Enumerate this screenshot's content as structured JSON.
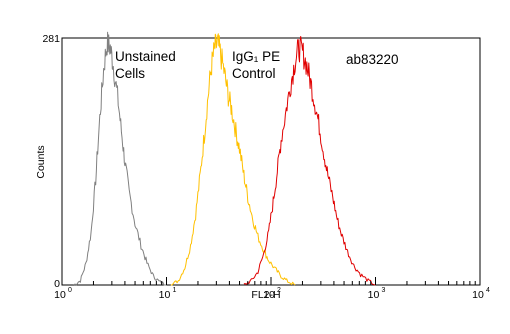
{
  "chart_data": {
    "type": "line",
    "title": "",
    "xlabel": "FL2-H",
    "ylabel": "Counts",
    "x_scale": "log",
    "xlim": [
      1,
      10000
    ],
    "ylim": [
      0,
      281
    ],
    "grid": false,
    "x_ticks": [
      {
        "base": "10",
        "exp": "0"
      },
      {
        "base": "10",
        "exp": "1"
      },
      {
        "base": "10",
        "exp": "2"
      },
      {
        "base": "10",
        "exp": "3"
      },
      {
        "base": "10",
        "exp": "4"
      }
    ],
    "y_ticks": [
      "0",
      "281"
    ],
    "annotations": [
      {
        "lines": [
          "Unstained",
          "Cells"
        ]
      },
      {
        "lines": [
          "IgG₁ PE",
          "Control"
        ]
      },
      {
        "lines": [
          "ab83220"
        ]
      }
    ],
    "series": [
      {
        "color": "#808080",
        "x": [
          1.3,
          1.5,
          1.7,
          1.9,
          2.1,
          2.3,
          2.5,
          2.7,
          2.9,
          3.1,
          3.4,
          3.7,
          4.0,
          4.4,
          5.0,
          5.7,
          6.5,
          7.5,
          8.5,
          10.0
        ],
        "y": [
          0,
          5,
          25,
          60,
          120,
          190,
          245,
          275,
          270,
          250,
          215,
          175,
          140,
          105,
          70,
          45,
          25,
          10,
          4,
          0
        ]
      },
      {
        "color": "#ffc000",
        "x": [
          11,
          13,
          15,
          17,
          19,
          21,
          23,
          25,
          27,
          29,
          31,
          33,
          36,
          39,
          42,
          46,
          50,
          55,
          60,
          67,
          75,
          85,
          95,
          110,
          125,
          145,
          170
        ],
        "y": [
          0,
          5,
          20,
          45,
          80,
          125,
          170,
          215,
          250,
          270,
          275,
          262,
          240,
          215,
          200,
          175,
          155,
          125,
          100,
          75,
          55,
          40,
          28,
          18,
          10,
          4,
          0
        ]
      },
      {
        "color": "#e00000",
        "x": [
          55,
          65,
          75,
          85,
          95,
          105,
          115,
          125,
          140,
          155,
          170,
          185,
          200,
          220,
          240,
          265,
          290,
          320,
          350,
          390,
          430,
          480,
          540,
          620,
          720,
          850,
          1000
        ],
        "y": [
          0,
          5,
          15,
          35,
          60,
          95,
          130,
          165,
          200,
          230,
          255,
          270,
          265,
          250,
          230,
          205,
          180,
          150,
          125,
          100,
          75,
          55,
          38,
          22,
          12,
          5,
          0
        ]
      }
    ]
  }
}
